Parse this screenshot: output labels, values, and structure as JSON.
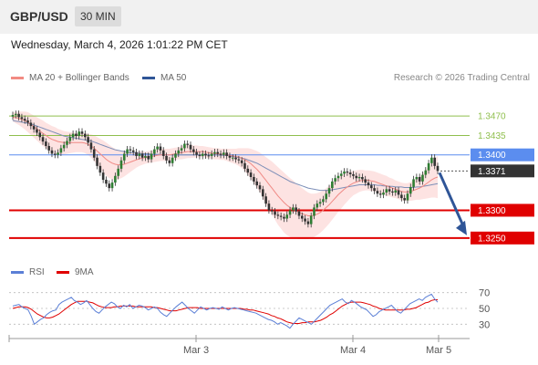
{
  "header": {
    "pair": "GBP/USD",
    "timeframe": "30 MIN"
  },
  "datetime": "Wednesday, March 4, 2026 1:01:22 PM CET",
  "credit": "Research © 2026 Trading Central",
  "legend_main": [
    {
      "label": "MA 20 + Bollinger Bands",
      "color": "#f28b82"
    },
    {
      "label": "MA 50",
      "color": "#2f5597"
    }
  ],
  "legend_rsi": [
    {
      "label": "RSI",
      "color": "#5b7fd6"
    },
    {
      "label": "9MA",
      "color": "#e00000"
    }
  ],
  "chart_data": {
    "type": "candlestick",
    "x_ticks": [
      "Mar 3",
      "Mar 4",
      "Mar 5"
    ],
    "ylim": [
      1.3225,
      1.3495
    ],
    "levels": [
      {
        "value": 1.347,
        "label": "1.3470",
        "kind": "target",
        "color": "#8fbf4d"
      },
      {
        "value": 1.3435,
        "label": "1.3435",
        "kind": "target",
        "color": "#8fbf4d"
      },
      {
        "value": 1.34,
        "label": "1.3400",
        "kind": "pivot",
        "color": "#5b8def"
      },
      {
        "value": 1.3371,
        "label": "1.3371",
        "kind": "last",
        "color": "#333333"
      },
      {
        "value": 1.33,
        "label": "1.3300",
        "kind": "support",
        "color": "#e00000"
      },
      {
        "value": 1.325,
        "label": "1.3250",
        "kind": "support",
        "color": "#e00000"
      }
    ],
    "close": [
      1.3472,
      1.3474,
      1.3468,
      1.3465,
      1.3462,
      1.3458,
      1.3452,
      1.3446,
      1.344,
      1.3432,
      1.3424,
      1.3416,
      1.3408,
      1.3402,
      1.34,
      1.3404,
      1.3412,
      1.3418,
      1.3425,
      1.3432,
      1.3438,
      1.3434,
      1.3442,
      1.3438,
      1.3432,
      1.3422,
      1.341,
      1.3395,
      1.338,
      1.3368,
      1.3355,
      1.3348,
      1.334,
      1.335,
      1.3362,
      1.3375,
      1.339,
      1.3402,
      1.341,
      1.3408,
      1.3405,
      1.3398,
      1.3402,
      1.3395,
      1.3398,
      1.3392,
      1.3402,
      1.341,
      1.3415,
      1.3408,
      1.3398,
      1.339,
      1.3385,
      1.3395,
      1.3402,
      1.3408,
      1.3412,
      1.342,
      1.3418,
      1.341,
      1.3405,
      1.34,
      1.3398,
      1.3402,
      1.3399,
      1.3398,
      1.3402,
      1.3405,
      1.3402,
      1.34,
      1.3404,
      1.3398,
      1.3395,
      1.3395,
      1.3392,
      1.339,
      1.3385,
      1.3375,
      1.3368,
      1.336,
      1.3352,
      1.3345,
      1.3338,
      1.3325,
      1.3312,
      1.33,
      1.3298,
      1.3292,
      1.329,
      1.3288,
      1.3285,
      1.3292,
      1.33,
      1.3305,
      1.3298,
      1.329,
      1.3285,
      1.328,
      1.3275,
      1.329,
      1.3305,
      1.3312,
      1.3315,
      1.332,
      1.333,
      1.334,
      1.3352,
      1.3358,
      1.3362,
      1.3366,
      1.337,
      1.3368,
      1.3365,
      1.3362,
      1.3358,
      1.336,
      1.3356,
      1.335,
      1.3345,
      1.334,
      1.3335,
      1.333,
      1.3328,
      1.3332,
      1.3338,
      1.3334,
      1.3332,
      1.3336,
      1.3328,
      1.3322,
      1.3318,
      1.333,
      1.3342,
      1.3356,
      1.336,
      1.3352,
      1.3364,
      1.3372,
      1.3385,
      1.3395,
      1.338,
      1.3371
    ],
    "ma20": [
      1.3468,
      1.3467,
      1.3466,
      1.3464,
      1.3462,
      1.3459,
      1.3455,
      1.3451,
      1.3447,
      1.3443,
      1.3439,
      1.3435,
      1.3431,
      1.3428,
      1.3426,
      1.3424,
      1.3423,
      1.3422,
      1.3422,
      1.3422,
      1.3422,
      1.3422,
      1.3422,
      1.3422,
      1.3421,
      1.3419,
      1.3416,
      1.3412,
      1.3407,
      1.3402,
      1.3397,
      1.3392,
      1.3388,
      1.3385,
      1.3383,
      1.3382,
      1.3382,
      1.3383,
      1.3385,
      1.3387,
      1.3389,
      1.3391,
      1.3393,
      1.3394,
      1.3395,
      1.3396,
      1.3397,
      1.3398,
      1.3399,
      1.34,
      1.34,
      1.34,
      1.34,
      1.3401,
      1.3402,
      1.3403,
      1.3404,
      1.3405,
      1.3406,
      1.3406,
      1.3406,
      1.3406,
      1.3406,
      1.3406,
      1.3405,
      1.3404,
      1.3403,
      1.3402,
      1.3402,
      1.3401,
      1.3401,
      1.34,
      1.3399,
      1.3398,
      1.3397,
      1.3396,
      1.3394,
      1.3391,
      1.3388,
      1.3384,
      1.3379,
      1.3374,
      1.3368,
      1.3361,
      1.3354,
      1.3347,
      1.334,
      1.3333,
      1.3326,
      1.332,
      1.3314,
      1.3309,
      1.3305,
      1.3302,
      1.3299,
      1.3296,
      1.3294,
      1.3292,
      1.329,
      1.329,
      1.3291,
      1.3293,
      1.3296,
      1.33,
      1.3305,
      1.331,
      1.3316,
      1.3322,
      1.3328,
      1.3333,
      1.3338,
      1.3342,
      1.3346,
      1.3349,
      1.3351,
      1.3353,
      1.3354,
      1.3354,
      1.3354,
      1.3353,
      1.3352,
      1.335,
      1.3348,
      1.3346,
      1.3344,
      1.3342,
      1.334,
      1.3338,
      1.3336,
      1.3334,
      1.3333,
      1.3333,
      1.3334,
      1.3336,
      1.3338,
      1.334,
      1.3343,
      1.3347,
      1.3351,
      1.3355,
      1.3358,
      1.336
    ],
    "ma50": [
      1.3462,
      1.3461,
      1.346,
      1.3459,
      1.3458,
      1.3457,
      1.3456,
      1.3454,
      1.3452,
      1.345,
      1.3448,
      1.3446,
      1.3444,
      1.3442,
      1.344,
      1.3438,
      1.3436,
      1.3434,
      1.3433,
      1.3432,
      1.3431,
      1.343,
      1.3429,
      1.3428,
      1.3427,
      1.3426,
      1.3425,
      1.3423,
      1.3421,
      1.3419,
      1.3417,
      1.3415,
      1.3413,
      1.3411,
      1.3409,
      1.3408,
      1.3407,
      1.3406,
      1.3405,
      1.3404,
      1.3404,
      1.3403,
      1.3403,
      1.3402,
      1.3402,
      1.3402,
      1.3401,
      1.3401,
      1.3401,
      1.3401,
      1.34,
      1.34,
      1.34,
      1.34,
      1.34,
      1.34,
      1.34,
      1.34,
      1.34,
      1.34,
      1.34,
      1.34,
      1.34,
      1.34,
      1.34,
      1.34,
      1.34,
      1.34,
      1.34,
      1.3399,
      1.3399,
      1.3399,
      1.3398,
      1.3397,
      1.3396,
      1.3395,
      1.3394,
      1.3393,
      1.3391,
      1.3389,
      1.3387,
      1.3385,
      1.3382,
      1.3379,
      1.3376,
      1.3373,
      1.337,
      1.3367,
      1.3364,
      1.3361,
      1.3358,
      1.3355,
      1.3352,
      1.335,
      1.3348,
      1.3346,
      1.3344,
      1.3342,
      1.334,
      1.3339,
      1.3338,
      1.3337,
      1.3336,
      1.3336,
      1.3336,
      1.3336,
      1.3337,
      1.3338,
      1.3339,
      1.334,
      1.3341,
      1.3342,
      1.3343,
      1.3344,
      1.3345,
      1.3346,
      1.3346,
      1.3346,
      1.3346,
      1.3346,
      1.3346,
      1.3345,
      1.3345,
      1.3344,
      1.3344,
      1.3343,
      1.3343,
      1.3342,
      1.3342,
      1.3342,
      1.3341,
      1.3341,
      1.3341,
      1.3341,
      1.3342,
      1.3342,
      1.3343,
      1.3344,
      1.3345,
      1.3346,
      1.3347,
      1.3348
    ],
    "band_width": [
      0.0008,
      0.001,
      0.0012,
      0.0014,
      0.0016,
      0.0018,
      0.0019,
      0.002,
      0.0021,
      0.0022,
      0.0023,
      0.0023,
      0.0024,
      0.0024,
      0.0024,
      0.0023,
      0.0022,
      0.0021,
      0.002,
      0.0019,
      0.0018,
      0.0017,
      0.0017,
      0.0017,
      0.0018,
      0.0019,
      0.0021,
      0.0023,
      0.0025,
      0.0027,
      0.0029,
      0.003,
      0.003,
      0.0029,
      0.0028,
      0.0026,
      0.0024,
      0.0022,
      0.002,
      0.0018,
      0.0016,
      0.0014,
      0.0013,
      0.0012,
      0.0011,
      0.0011,
      0.0011,
      0.0011,
      0.0011,
      0.0011,
      0.0011,
      0.0011,
      0.0011,
      0.0011,
      0.0011,
      0.0011,
      0.0012,
      0.0012,
      0.0012,
      0.0012,
      0.0011,
      0.0011,
      0.001,
      0.001,
      0.001,
      0.001,
      0.001,
      0.001,
      0.001,
      0.001,
      0.001,
      0.0011,
      0.0012,
      0.0013,
      0.0014,
      0.0016,
      0.0018,
      0.0021,
      0.0024,
      0.0027,
      0.003,
      0.0033,
      0.0036,
      0.0039,
      0.0042,
      0.0045,
      0.0048,
      0.005,
      0.0052,
      0.0053,
      0.0054,
      0.0054,
      0.0053,
      0.0052,
      0.005,
      0.0048,
      0.0046,
      0.0044,
      0.0042,
      0.004,
      0.0039,
      0.0038,
      0.0037,
      0.0036,
      0.0035,
      0.0034,
      0.0033,
      0.0032,
      0.0031,
      0.003,
      0.0028,
      0.0026,
      0.0024,
      0.0022,
      0.0021,
      0.002,
      0.0019,
      0.0018,
      0.0018,
      0.0018,
      0.0018,
      0.0018,
      0.0018,
      0.0018,
      0.0018,
      0.0017,
      0.0017,
      0.0016,
      0.0016,
      0.0016,
      0.0016,
      0.0016,
      0.0017,
      0.0018,
      0.0019,
      0.0021,
      0.0023,
      0.0026,
      0.0029,
      0.0032,
      0.0035,
      0.0038
    ],
    "forecast": {
      "from": 1.3371,
      "to": 1.325
    }
  },
  "rsi_data": {
    "ylim": [
      20,
      80
    ],
    "ticks": [
      70,
      50,
      30
    ],
    "rsi": [
      53,
      54,
      55,
      52,
      50,
      48,
      40,
      30,
      33,
      36,
      38,
      42,
      45,
      47,
      48,
      55,
      58,
      60,
      62,
      64,
      60,
      58,
      55,
      57,
      60,
      55,
      50,
      46,
      44,
      48,
      52,
      55,
      58,
      56,
      52,
      50,
      54,
      52,
      55,
      50,
      52,
      54,
      53,
      51,
      48,
      50,
      52,
      50,
      45,
      42,
      40,
      44,
      48,
      52,
      55,
      58,
      54,
      50,
      47,
      44,
      48,
      52,
      50,
      48,
      50,
      51,
      50,
      49,
      52,
      50,
      48,
      50,
      51,
      50,
      49,
      48,
      47,
      46,
      45,
      44,
      42,
      40,
      38,
      36,
      35,
      33,
      30,
      32,
      30,
      28,
      25,
      30,
      34,
      38,
      36,
      34,
      32,
      30,
      34,
      38,
      42,
      46,
      50,
      54,
      56,
      58,
      60,
      62,
      58,
      56,
      60,
      58,
      55,
      52,
      50,
      48,
      44,
      40,
      42,
      46,
      48,
      50,
      52,
      54,
      50,
      46,
      44,
      48,
      52,
      56,
      58,
      60,
      62,
      60,
      64,
      66,
      68,
      62,
      58
    ],
    "ma9": [
      50,
      51,
      52,
      52,
      52,
      51,
      49,
      46,
      43,
      41,
      39,
      38,
      38,
      39,
      41,
      43,
      46,
      49,
      52,
      55,
      57,
      59,
      59,
      59,
      59,
      58,
      57,
      55,
      53,
      52,
      51,
      51,
      51,
      52,
      52,
      53,
      53,
      53,
      53,
      53,
      52,
      52,
      52,
      52,
      52,
      52,
      51,
      51,
      50,
      49,
      48,
      47,
      47,
      47,
      48,
      49,
      50,
      51,
      51,
      51,
      51,
      50,
      50,
      50,
      50,
      50,
      50,
      50,
      50,
      50,
      50,
      50,
      50,
      50,
      50,
      49,
      49,
      48,
      48,
      47,
      46,
      45,
      44,
      43,
      41,
      40,
      38,
      37,
      35,
      33,
      32,
      31,
      31,
      31,
      32,
      32,
      33,
      33,
      33,
      34,
      35,
      37,
      39,
      42,
      44,
      47,
      50,
      53,
      55,
      57,
      58,
      58,
      58,
      58,
      57,
      56,
      55,
      53,
      52,
      50,
      49,
      48,
      48,
      48,
      48,
      48,
      48,
      48,
      49,
      49,
      50,
      51,
      53,
      55,
      57,
      58,
      60,
      61,
      61
    ]
  }
}
